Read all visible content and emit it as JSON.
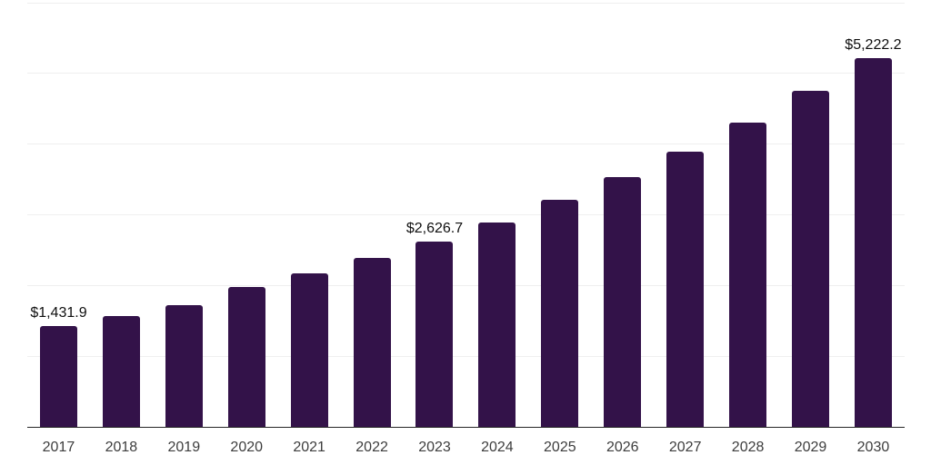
{
  "chart_data": {
    "type": "bar",
    "title": "",
    "xlabel": "",
    "ylabel": "",
    "categories": [
      "2017",
      "2018",
      "2019",
      "2020",
      "2021",
      "2022",
      "2023",
      "2024",
      "2025",
      "2026",
      "2027",
      "2028",
      "2029",
      "2030"
    ],
    "values": [
      1431.9,
      1563,
      1722,
      1979,
      2171,
      2390,
      2626.7,
      2891,
      3212,
      3533,
      3897,
      4304,
      4754,
      5222.2
    ],
    "data_labels": [
      {
        "index": 0,
        "text": "$1,431.9"
      },
      {
        "index": 6,
        "text": "$2,626.7"
      },
      {
        "index": 13,
        "text": "$5,222.2"
      }
    ],
    "ylim": [
      0,
      6000
    ],
    "grid_step": 1000,
    "grid": "horizontal-only",
    "legend": "none",
    "y_axis_ticks_visible": false,
    "colors": {
      "bar": "#331249",
      "gridline": "#efefef",
      "axis_line": "#262626",
      "tick_label": "#3d3d3d",
      "data_label": "#0f0f0f",
      "background": "#ffffff"
    }
  }
}
